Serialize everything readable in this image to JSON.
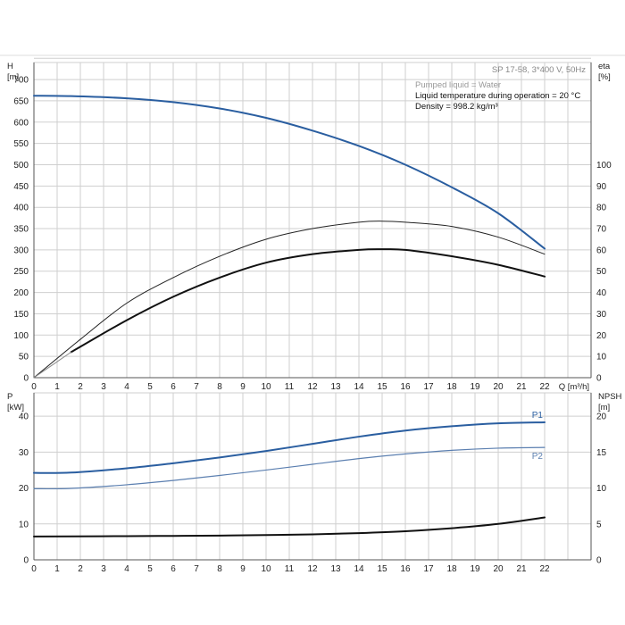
{
  "chart_data": [
    {
      "type": "line",
      "panel": "top",
      "subtitle": "SP 17-58, 3*400 V, 50Hz",
      "notes": [
        "Pumped liquid = Water",
        "Liquid temperature during operation = 20 °C",
        "Density = 998.2 kg/m³"
      ],
      "x_axis": {
        "label": "Q [m³/h]",
        "ticks": [
          0,
          1,
          2,
          3,
          4,
          5,
          6,
          7,
          8,
          9,
          10,
          11,
          12,
          13,
          14,
          15,
          16,
          17,
          18,
          19,
          20,
          21,
          22
        ],
        "range": [
          0,
          24
        ]
      },
      "y_left": {
        "label_line1": "H",
        "label_line2": "[m]",
        "ticks": [
          0,
          50,
          100,
          150,
          200,
          250,
          300,
          350,
          400,
          450,
          500,
          550,
          600,
          650,
          700
        ],
        "range": [
          0,
          740
        ]
      },
      "y_right": {
        "label_line1": "eta",
        "label_line2": "[%]",
        "ticks": [
          0,
          10,
          20,
          30,
          40,
          50,
          60,
          70,
          80,
          90,
          100
        ],
        "range": [
          0,
          148
        ]
      },
      "series": [
        {
          "axis": "left",
          "color": "#2a5ea0",
          "width": 2,
          "x": [
            0,
            1.6,
            4,
            6,
            8,
            10,
            12,
            14,
            16,
            18,
            20,
            22
          ],
          "values": [
            662,
            661,
            656,
            647,
            632,
            610,
            580,
            544,
            500,
            447,
            386,
            303
          ]
        },
        {
          "axis": "right",
          "color": "#222222",
          "width": 1,
          "x": [
            0,
            2,
            4,
            6,
            8,
            10,
            12,
            14,
            15,
            16,
            18,
            20,
            22
          ],
          "values": [
            0,
            18,
            35,
            47,
            57,
            65,
            70,
            73,
            73.5,
            73,
            71,
            66,
            58
          ]
        },
        {
          "axis": "right",
          "color": "#111111",
          "width": 2,
          "x": [
            1.6,
            4,
            6,
            8,
            10,
            12,
            14,
            15,
            16,
            18,
            20,
            22
          ],
          "values": [
            12,
            27,
            38,
            47,
            54,
            58,
            60,
            60.3,
            60,
            57,
            53,
            47.5
          ]
        },
        {
          "axis": "right",
          "color": "#8a8a8a",
          "width": 1,
          "x": [
            0,
            1.6
          ],
          "values": [
            0,
            12
          ]
        }
      ]
    },
    {
      "type": "line",
      "panel": "bottom",
      "x_axis": {
        "ticks": [
          0,
          1,
          2,
          3,
          4,
          5,
          6,
          7,
          8,
          9,
          10,
          11,
          12,
          13,
          14,
          15,
          16,
          17,
          18,
          19,
          20,
          21,
          22
        ],
        "range": [
          0,
          24
        ]
      },
      "y_left": {
        "label_line1": "P",
        "label_line2": "[kW]",
        "ticks": [
          0,
          10,
          20,
          30,
          40
        ],
        "range": [
          0,
          46.5
        ]
      },
      "y_right": {
        "label_line1": "NPSH",
        "label_line2": "[m]",
        "ticks": [
          0,
          5,
          10,
          15,
          20
        ],
        "range": [
          0,
          23.25
        ]
      },
      "series": [
        {
          "name": "P1",
          "axis": "left",
          "color": "#2a5ea0",
          "width": 2,
          "x": [
            0,
            1.6,
            4,
            6,
            8,
            10,
            12,
            14,
            16,
            18,
            20,
            22
          ],
          "values": [
            24.2,
            24.3,
            25.5,
            26.9,
            28.5,
            30.3,
            32.3,
            34.3,
            36.0,
            37.2,
            38.0,
            38.3
          ]
        },
        {
          "name": "P2",
          "axis": "left",
          "color": "#5b7fb0",
          "width": 1.2,
          "x": [
            0,
            1.6,
            4,
            6,
            8,
            10,
            12,
            14,
            16,
            18,
            20,
            22
          ],
          "values": [
            19.8,
            19.9,
            20.9,
            22.1,
            23.5,
            25.0,
            26.6,
            28.2,
            29.5,
            30.5,
            31.1,
            31.3
          ]
        },
        {
          "axis": "right",
          "color": "#111111",
          "width": 2,
          "x": [
            0,
            1.6,
            4,
            6,
            8,
            10,
            12,
            14,
            16,
            18,
            20,
            22
          ],
          "values": [
            3.25,
            3.27,
            3.3,
            3.33,
            3.37,
            3.45,
            3.55,
            3.72,
            3.98,
            4.4,
            5.0,
            5.9
          ]
        }
      ]
    }
  ]
}
